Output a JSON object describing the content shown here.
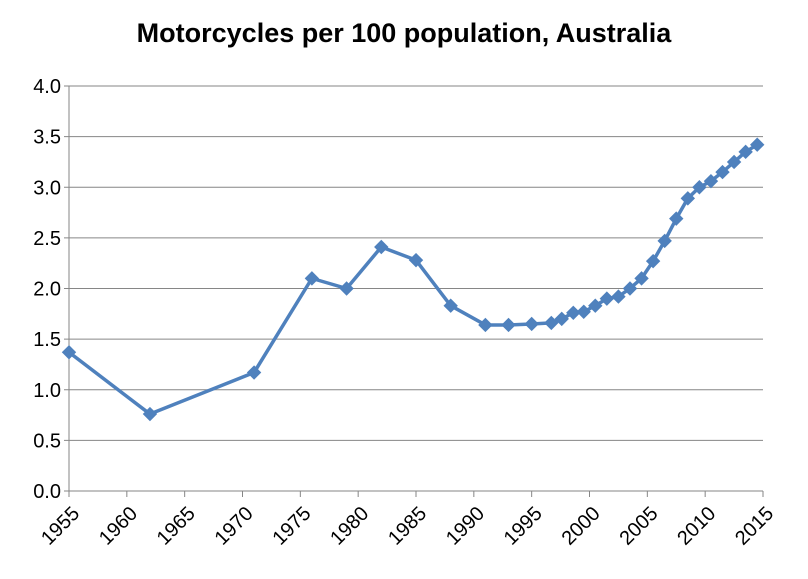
{
  "chart_data": {
    "type": "line",
    "title": "Motorcycles per 100 population, Australia",
    "xlabel": "",
    "ylabel": "",
    "xlim": [
      1955,
      2015
    ],
    "ylim": [
      0,
      4.0
    ],
    "x_ticks": [
      1955,
      1960,
      1965,
      1970,
      1975,
      1980,
      1985,
      1990,
      1995,
      2000,
      2005,
      2010,
      2015
    ],
    "y_ticks": [
      "0.0",
      "0.5",
      "1.0",
      "1.5",
      "2.0",
      "2.5",
      "3.0",
      "3.5",
      "4.0"
    ],
    "grid": true,
    "legend": "none",
    "series": [
      {
        "name": "Motorcycles per 100 population",
        "color": "#4F81BD",
        "marker": "diamond",
        "points": [
          [
            1955,
            1.37
          ],
          [
            1962,
            0.76
          ],
          [
            1971,
            1.17
          ],
          [
            1976,
            2.1
          ],
          [
            1979,
            2.0
          ],
          [
            1982,
            2.41
          ],
          [
            1985,
            2.28
          ],
          [
            1988,
            1.83
          ],
          [
            1991,
            1.64
          ],
          [
            1993,
            1.64
          ],
          [
            1995,
            1.65
          ],
          [
            1996.7,
            1.66
          ],
          [
            1997.6,
            1.7
          ],
          [
            1998.6,
            1.76
          ],
          [
            1999.5,
            1.77
          ],
          [
            2000.5,
            1.83
          ],
          [
            2001.5,
            1.9
          ],
          [
            2002.5,
            1.92
          ],
          [
            2003.5,
            2.0
          ],
          [
            2004.5,
            2.1
          ],
          [
            2005.5,
            2.27
          ],
          [
            2006.5,
            2.47
          ],
          [
            2007.5,
            2.69
          ],
          [
            2008.5,
            2.89
          ],
          [
            2009.5,
            3.0
          ],
          [
            2010.5,
            3.06
          ],
          [
            2011.5,
            3.15
          ],
          [
            2012.5,
            3.25
          ],
          [
            2013.5,
            3.35
          ],
          [
            2014.5,
            3.42
          ]
        ]
      }
    ]
  }
}
